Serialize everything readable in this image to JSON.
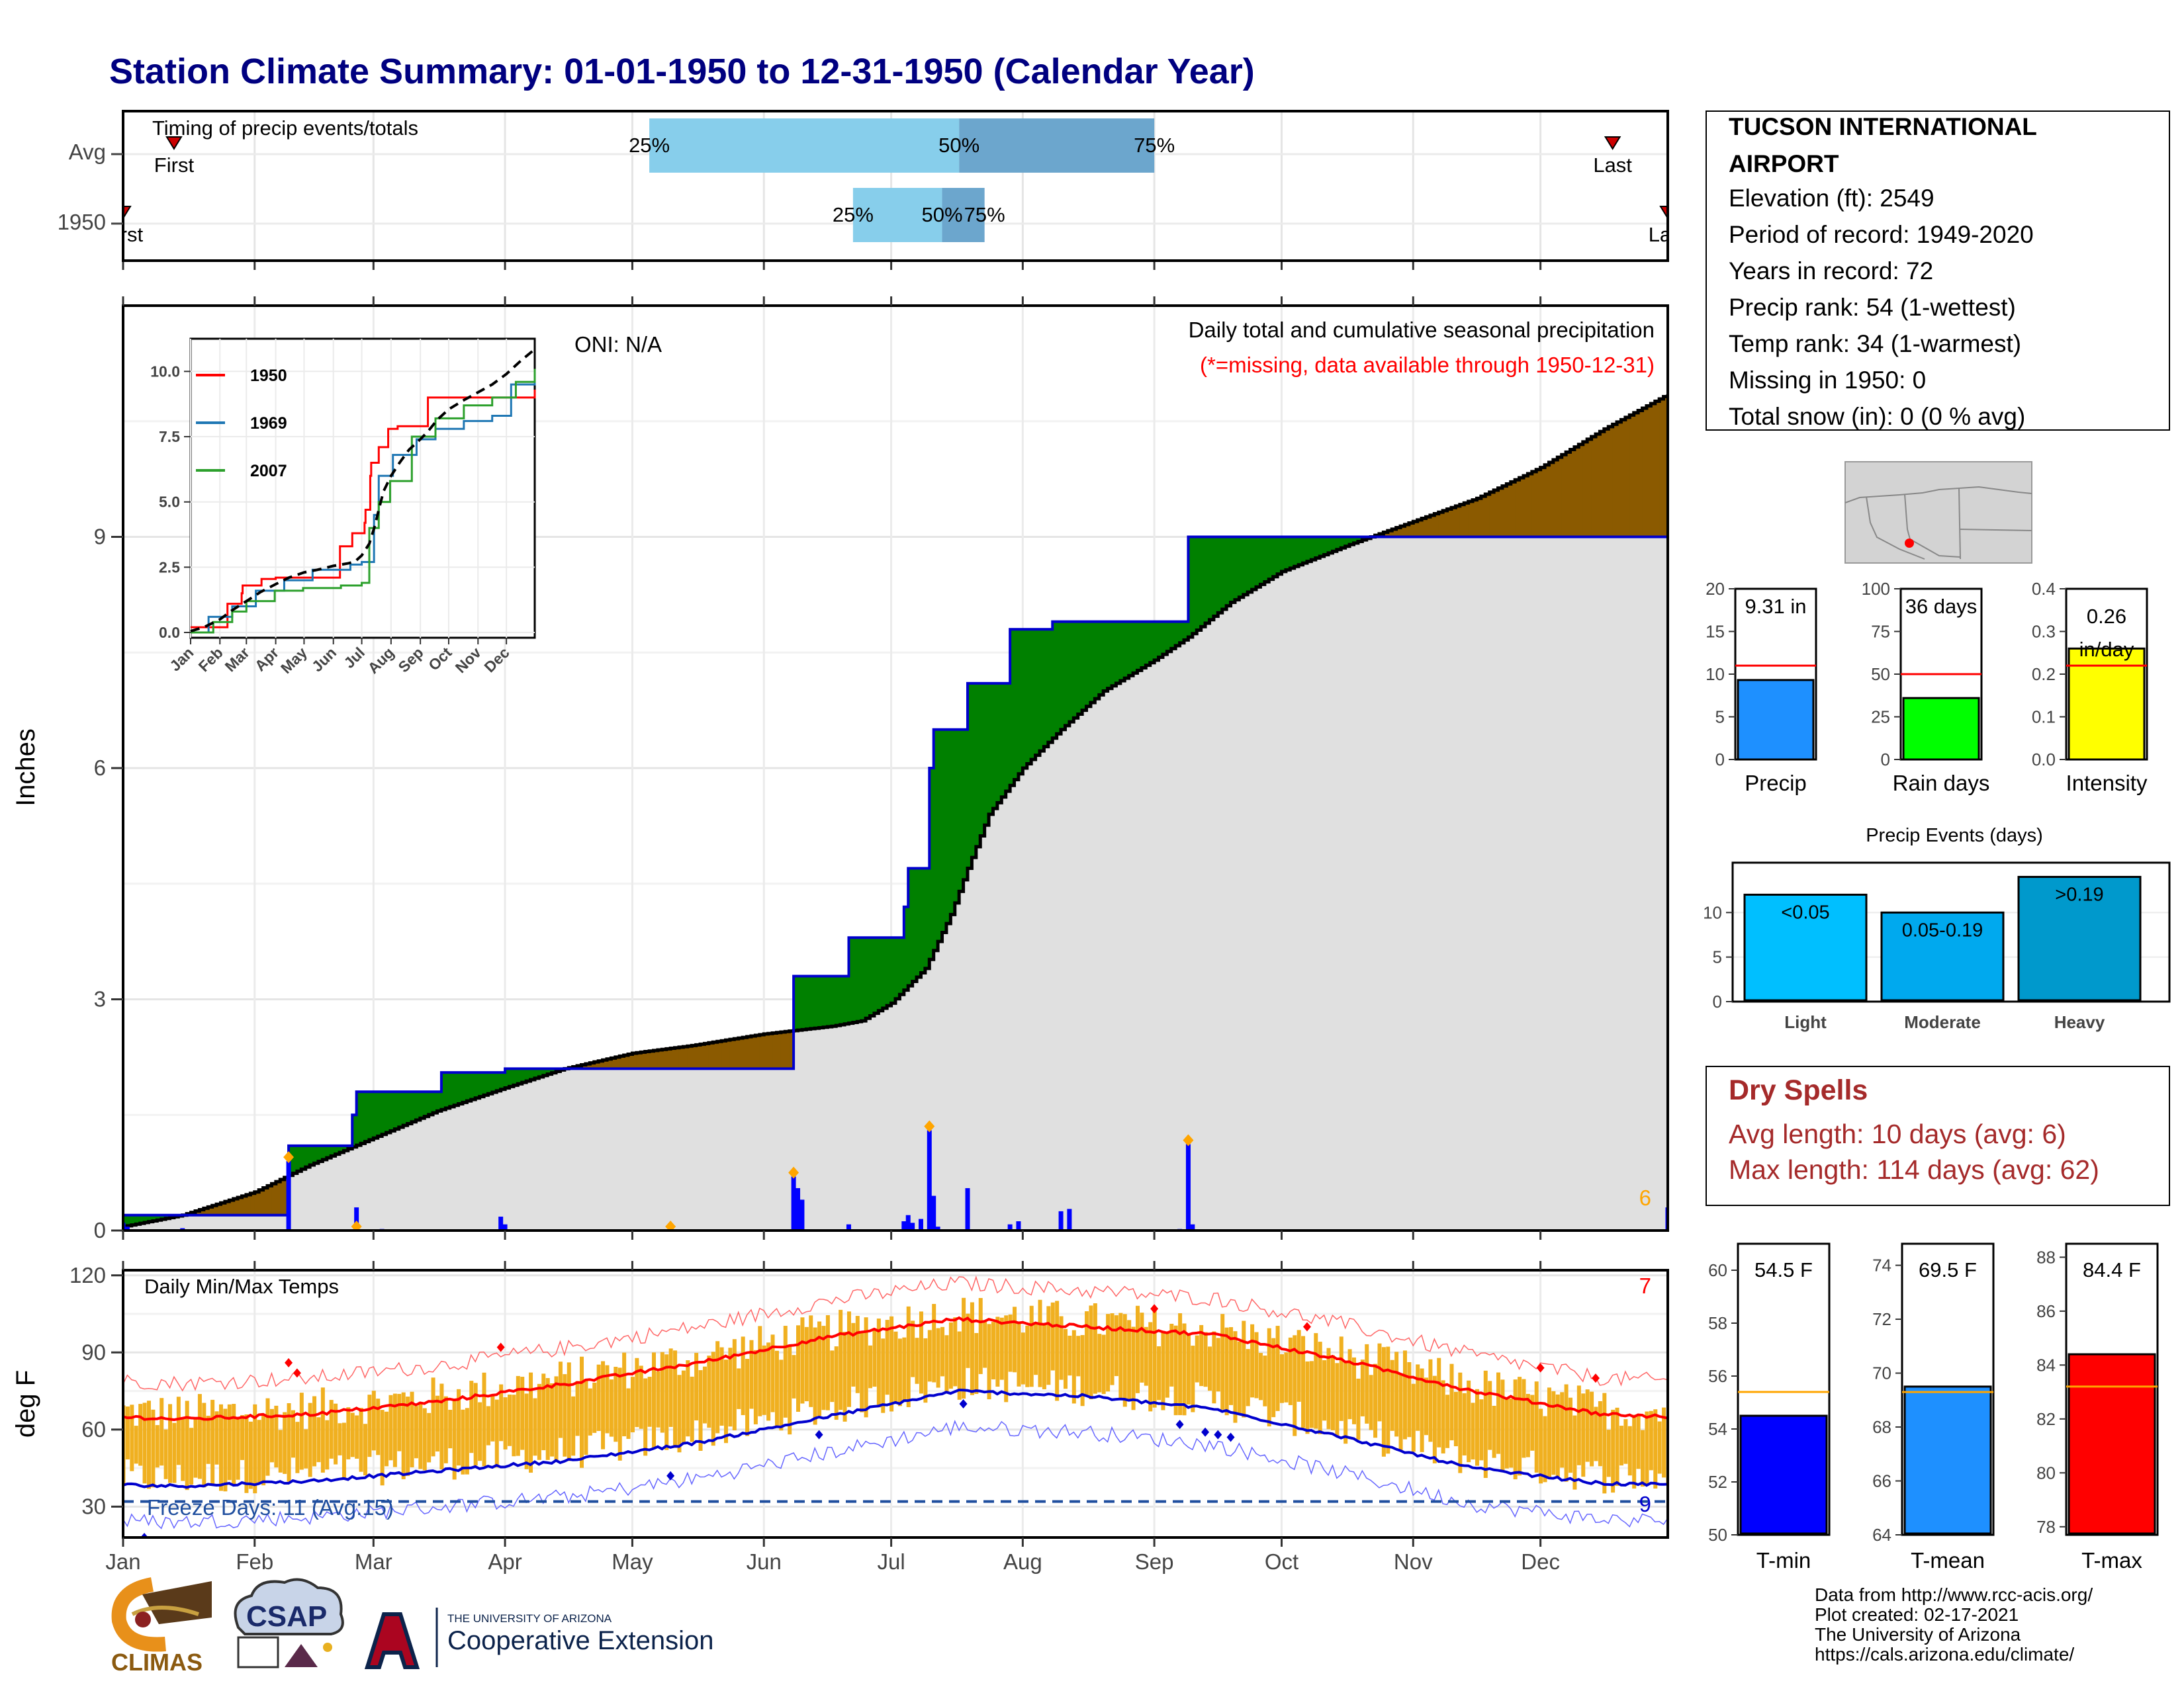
{
  "title": "Station Climate Summary: 01-01-1950 to 12-31-1950 (Calendar Year)",
  "colors": {
    "title": "#000080",
    "light_blue": "#87CEEB",
    "steel_blue": "#6CA6CD",
    "surplus": "#008000",
    "deficit": "#8B5A00",
    "area_fill": "#E0E0E0",
    "precip_bar": "#0000FF",
    "temp_bar": "#F0B020",
    "red": "#FF0000",
    "blue": "#0000CD",
    "dry_spells": "#A52A2A",
    "orange": "#FFA500"
  },
  "timing": {
    "label": "Timing of precip events/totals",
    "rows": [
      "Avg",
      "1950"
    ],
    "avg": {
      "first_label": "First",
      "last_label": "Last",
      "first_day": 13,
      "last_day": 352,
      "p25_day": 125,
      "p50_day": 198,
      "p75_day": 244,
      "p25": "25%",
      "p50": "50%",
      "p75": "75%"
    },
    "y1950": {
      "first_label": "First",
      "last_label": "Last",
      "first_day": 1,
      "last_day": 365,
      "p25_day": 173,
      "p50_day": 194,
      "p75_day": 204,
      "p25": "25%",
      "p50": "50%",
      "p75": "75%"
    }
  },
  "main": {
    "daily_label": "Daily total and cumulative seasonal precipitation",
    "missing_note": "(*=missing, data available through 1950-12-31)",
    "oni": "ONI: N/A",
    "ylabel": "Inches",
    "yticks": [
      0,
      3,
      6,
      9
    ],
    "ylim": [
      0,
      12
    ],
    "corner_count": "6"
  },
  "months": [
    "Jan",
    "Feb",
    "Mar",
    "Apr",
    "May",
    "Jun",
    "Jul",
    "Aug",
    "Sep",
    "Oct",
    "Nov",
    "Dec"
  ],
  "inset": {
    "yticks": [
      "0.0",
      "2.5",
      "5.0",
      "7.5",
      "10.0"
    ],
    "months": [
      "Jan",
      "Feb",
      "Mar",
      "Apr",
      "May",
      "Jun",
      "Jul",
      "Aug",
      "Sep",
      "Oct",
      "Nov",
      "Dec"
    ],
    "legend": [
      {
        "name": "1950",
        "color": "#FF0000"
      },
      {
        "name": "1969",
        "color": "#1F77B4"
      },
      {
        "name": "2007",
        "color": "#2CA02C"
      }
    ]
  },
  "station": {
    "name_line1": "TUCSON INTERNATIONAL",
    "name_line2": "AIRPORT",
    "elevation": "Elevation (ft): 2549",
    "period": "Period of record: 1949-2020",
    "years": "Years in record: 72",
    "precip_rank": "Precip rank: 54 (1-wettest)",
    "temp_rank": "Temp rank: 34 (1-warmest)",
    "missing": "Missing in 1950: 0",
    "snow": "Total snow (in): 0 (0 % avg)"
  },
  "summary_bars": [
    {
      "label": "Precip",
      "value": 9.31,
      "avg": 11.0,
      "text": "9.31 in",
      "yticks": [
        "0",
        "5",
        "10",
        "15",
        "20"
      ],
      "ymax": 20,
      "color": "#1E90FF"
    },
    {
      "label": "Rain days",
      "value": 36,
      "avg": 50,
      "text": "36 days",
      "yticks": [
        "0",
        "25",
        "50",
        "75",
        "100"
      ],
      "ymax": 100,
      "color": "#00FF00"
    },
    {
      "label": "Intensity",
      "value": 0.26,
      "avg": 0.22,
      "text": "0.26 in/day",
      "text_line1": "0.26",
      "text_line2": "in/day",
      "yticks": [
        "0.0",
        "0.1",
        "0.2",
        "0.3",
        "0.4"
      ],
      "ymax": 0.4,
      "color": "#FFFF00"
    }
  ],
  "precip_events": {
    "title": "Precip Events (days)",
    "yticks": [
      "0",
      "5",
      "10"
    ],
    "ymax": 15,
    "bars": [
      {
        "label": "Light",
        "value": 12,
        "text": "<0.05",
        "color": "#00BFFF"
      },
      {
        "label": "Moderate",
        "value": 10,
        "text": "0.05-0.19",
        "color": "#00A9EE"
      },
      {
        "label": "Heavy",
        "value": 14,
        "text": ">0.19",
        "color": "#0099CC"
      }
    ]
  },
  "dry_spells": {
    "title": "Dry Spells",
    "avg_length": "Avg length: 10 days (avg: 6)",
    "max_length": "Max length: 114 days (avg: 62)"
  },
  "temps": {
    "label": "Daily Min/Max Temps",
    "ylabel": "deg F",
    "yticks": [
      30,
      60,
      90,
      120
    ],
    "ylim": [
      18,
      122
    ],
    "freeze_label": "Freeze Days: 11 (Avg:15)",
    "freeze_line": 32,
    "max_count": "7",
    "min_count": "9",
    "tmax_avg": {
      "jan": 64,
      "jul": 103
    },
    "tmin_avg": {
      "jan": 38,
      "jul": 75
    }
  },
  "temp_bars": [
    {
      "label": "T-min",
      "value": 54.5,
      "avg": 55.4,
      "text": "54.5 F",
      "yticks": [
        "50",
        "52",
        "54",
        "56",
        "58",
        "60"
      ],
      "ymin": 50,
      "ymax": 61,
      "color": "#0000FF"
    },
    {
      "label": "T-mean",
      "value": 69.5,
      "avg": 69.3,
      "text": "69.5 F",
      "yticks": [
        "64",
        "66",
        "68",
        "70",
        "72",
        "74"
      ],
      "ymin": 64,
      "ymax": 74.8,
      "color": "#1E90FF"
    },
    {
      "label": "T-max",
      "value": 84.4,
      "avg": 83.2,
      "text": "84.4 F",
      "yticks": [
        "78",
        "80",
        "82",
        "84",
        "86",
        "88"
      ],
      "ymin": 77.7,
      "ymax": 88.5,
      "color": "#FF0000"
    }
  ],
  "credits": {
    "line1": "Data from http://www.rcc-acis.org/",
    "line2": "Plot created: 02-17-2021",
    "line3": "The University of Arizona",
    "line4": "https://cals.arizona.edu/climate/"
  },
  "logos": {
    "climas": "CLIMAS",
    "csap": "CSAP",
    "ua_small": "THE UNIVERSITY OF ARIZONA",
    "ua_big": "Cooperative Extension"
  },
  "chart_data": [
    {
      "type": "area",
      "title": "Daily total and cumulative seasonal precipitation",
      "ylabel": "Inches",
      "ylim": [
        0,
        12
      ],
      "series": [
        {
          "name": "1950",
          "x": [
            1,
            29,
            40,
            55,
            56,
            75,
            76,
            90,
            91,
            105,
            130,
            158,
            159,
            171,
            172,
            185,
            186,
            191,
            192,
            200,
            210,
            220,
            240,
            251,
            252,
            272,
            365
          ],
          "values": [
            0.2,
            0.2,
            1.1,
            1.5,
            1.8,
            1.8,
            2.05,
            2.05,
            2.1,
            2.1,
            2.1,
            2.1,
            3.3,
            3.3,
            3.8,
            4.2,
            4.7,
            6.0,
            6.5,
            7.1,
            7.8,
            7.9,
            7.9,
            7.9,
            9.0,
            9.0,
            9.31
          ]
        }
      ]
    },
    {
      "type": "line",
      "title": "Daily Min/Max Temps",
      "ylabel": "deg F",
      "ylim": [
        18,
        122
      ],
      "series": [
        {
          "name": "T-max avg",
          "values": [
            64,
            66,
            71,
            78,
            86,
            96,
            103,
            100,
            97,
            87,
            75,
            66
          ]
        },
        {
          "name": "T-min avg",
          "values": [
            38,
            40,
            44,
            48,
            55,
            65,
            75,
            73,
            68,
            57,
            45,
            39
          ]
        }
      ]
    }
  ]
}
